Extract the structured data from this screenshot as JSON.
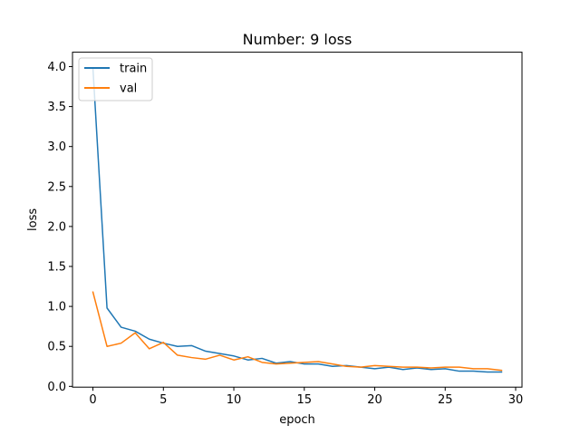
{
  "chart_data": {
    "type": "line",
    "title": "Number: 9 loss",
    "xlabel": "epoch",
    "ylabel": "loss",
    "xlim": [
      -1.45,
      30.45
    ],
    "ylim": [
      -0.01,
      4.18
    ],
    "xticks": [
      0,
      5,
      10,
      15,
      20,
      25,
      30
    ],
    "yticks": [
      0.0,
      0.5,
      1.0,
      1.5,
      2.0,
      2.5,
      3.0,
      3.5,
      4.0
    ],
    "xtick_labels": [
      "0",
      "5",
      "10",
      "15",
      "20",
      "25",
      "30"
    ],
    "ytick_labels": [
      "0.0",
      "0.5",
      "1.0",
      "1.5",
      "2.0",
      "2.5",
      "3.0",
      "3.5",
      "4.0"
    ],
    "grid": false,
    "legend_position": "top-left",
    "x": [
      0,
      1,
      2,
      3,
      4,
      5,
      6,
      7,
      8,
      9,
      10,
      11,
      12,
      13,
      14,
      15,
      16,
      17,
      18,
      19,
      20,
      21,
      22,
      23,
      24,
      25,
      26,
      27,
      28,
      29
    ],
    "series": [
      {
        "name": "train",
        "color": "#1f77b4",
        "values": [
          3.98,
          0.98,
          0.74,
          0.69,
          0.59,
          0.54,
          0.5,
          0.51,
          0.44,
          0.41,
          0.38,
          0.33,
          0.35,
          0.29,
          0.31,
          0.28,
          0.28,
          0.25,
          0.26,
          0.24,
          0.22,
          0.24,
          0.21,
          0.23,
          0.21,
          0.22,
          0.19,
          0.19,
          0.18,
          0.18
        ]
      },
      {
        "name": "val",
        "color": "#ff7f0e",
        "values": [
          1.18,
          0.5,
          0.54,
          0.67,
          0.47,
          0.55,
          0.39,
          0.36,
          0.34,
          0.39,
          0.33,
          0.37,
          0.3,
          0.28,
          0.29,
          0.3,
          0.31,
          0.28,
          0.25,
          0.24,
          0.26,
          0.25,
          0.24,
          0.24,
          0.23,
          0.24,
          0.24,
          0.22,
          0.22,
          0.2
        ]
      }
    ]
  }
}
